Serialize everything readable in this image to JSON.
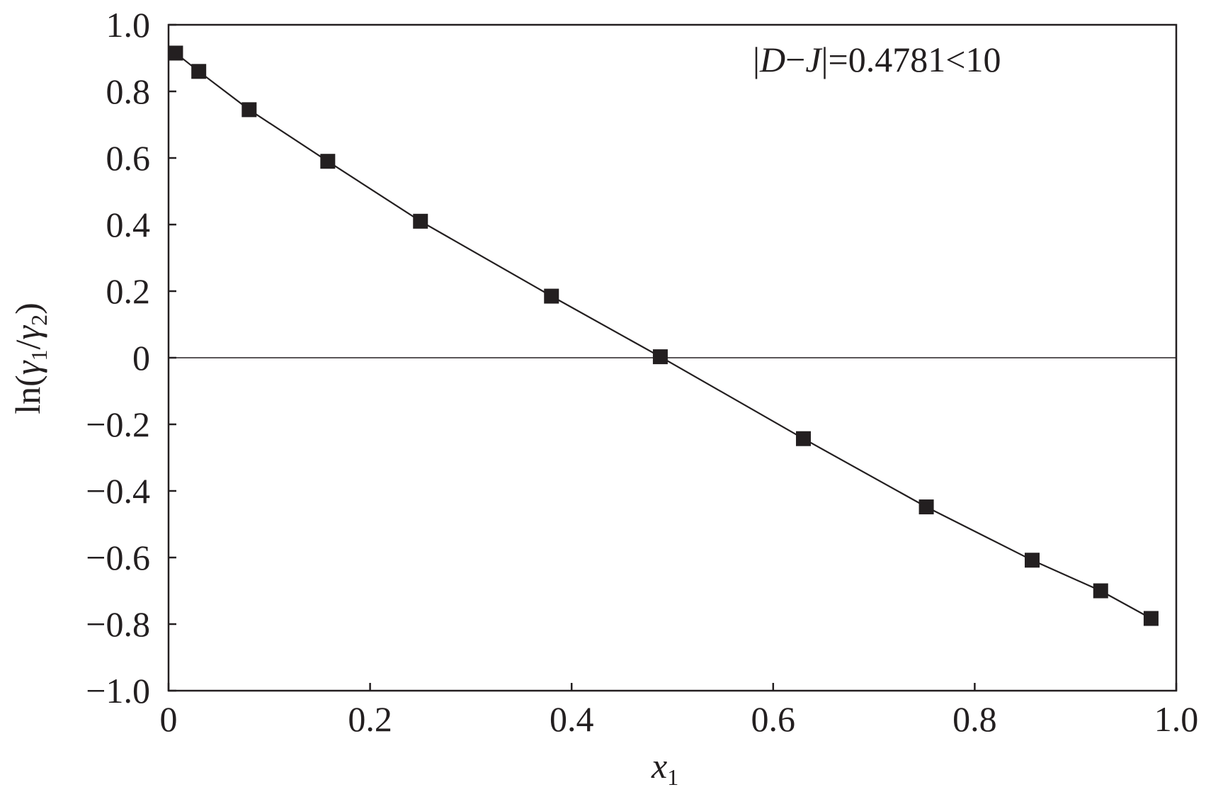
{
  "chart_data": {
    "type": "scatter",
    "x": [
      0.007,
      0.03,
      0.08,
      0.158,
      0.25,
      0.38,
      0.488,
      0.63,
      0.752,
      0.857,
      0.925,
      0.975
    ],
    "y": [
      0.915,
      0.86,
      0.745,
      0.59,
      0.41,
      0.185,
      0.003,
      -0.243,
      -0.448,
      -0.608,
      -0.7,
      -0.783
    ],
    "series": [
      {
        "name": "",
        "marker": "filled-square",
        "line": "solid",
        "color": "#231f20"
      }
    ],
    "xlabel": "x",
    "xlabel_sub": "1",
    "ylabel": {
      "prefix": "ln(",
      "g1": "γ",
      "s1": "1",
      "slash": "/",
      "g2": "γ",
      "s2": "2",
      "suffix": ")"
    },
    "xlim": [
      0,
      1.0
    ],
    "ylim": [
      -1.0,
      1.0
    ],
    "xticks": [
      {
        "value": 0,
        "label": "0"
      },
      {
        "value": 0.2,
        "label": "0.2"
      },
      {
        "value": 0.4,
        "label": "0.4"
      },
      {
        "value": 0.6,
        "label": "0.6"
      },
      {
        "value": 0.8,
        "label": "0.8"
      },
      {
        "value": 1.0,
        "label": "1.0"
      }
    ],
    "yticks": [
      {
        "value": 1.0,
        "label": "1.0"
      },
      {
        "value": 0.8,
        "label": "0.8"
      },
      {
        "value": 0.6,
        "label": "0.6"
      },
      {
        "value": 0.4,
        "label": "0.4"
      },
      {
        "value": 0.2,
        "label": "0.2"
      },
      {
        "value": 0,
        "label": "0"
      },
      {
        "value": -0.2,
        "label": "−0.2"
      },
      {
        "value": -0.4,
        "label": "−0.4"
      },
      {
        "value": -0.6,
        "label": "−0.6"
      },
      {
        "value": -0.8,
        "label": "−0.8"
      },
      {
        "value": -1.0,
        "label": "−1.0"
      }
    ],
    "reference_line_y": 0,
    "annotation": {
      "bar1": "|",
      "d": "D",
      "dash": "−",
      "j": "J",
      "bar2": "|",
      "rest": "=0.4781<10"
    },
    "grid": false,
    "legend": "none"
  }
}
